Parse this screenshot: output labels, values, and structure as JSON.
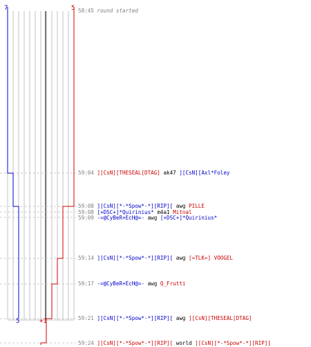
{
  "scores": {
    "top_left": "7",
    "top_right": "5",
    "bottom_left": "5",
    "bottom_right": "+1"
  },
  "colors": {
    "blue": "#0000cc",
    "red": "#cc0000",
    "grid": "#c0c0c0",
    "text_gray": "#808080",
    "dashed": "#c8c8c8",
    "dark_line": "#777777"
  },
  "events": [
    {
      "time": "58:45",
      "desc": "round started"
    },
    {
      "time": "59:04",
      "killer": "][CsN][THESEAL[DTAG]",
      "killer_team": "red",
      "weapon": "ak47",
      "victim": "][CsN][Axl*Foley",
      "victim_team": "blue"
    },
    {
      "time": "59:08",
      "killer": "][CsN][*-*Spow*-*][RIP][",
      "killer_team": "blue",
      "weapon": "awg",
      "victim": "PILLE",
      "victim_team": "red"
    },
    {
      "time": "59:08",
      "killer": "[+DSC+]*Quirinius*",
      "killer_team": "blue",
      "weapon": "m4a1",
      "victim": "Mitnal",
      "victim_team": "red"
    },
    {
      "time": "59:09",
      "killer": "-=@CyBeR+EcH@=-",
      "killer_team": "blue",
      "weapon": "awg",
      "victim": "[+DSC+]*Quirinius*",
      "victim_team": "blue"
    },
    {
      "time": "59:14",
      "killer": "][CsN][*-*Spow*-*][RIP][",
      "killer_team": "blue",
      "weapon": "awg",
      "victim": "[=TLK=] VOOGEL",
      "victim_team": "red"
    },
    {
      "time": "59:17",
      "killer": "-=@CyBeR+EcH@=-",
      "killer_team": "blue",
      "weapon": "awg",
      "victim": "Q_Frutti",
      "victim_team": "red"
    },
    {
      "time": "59:21",
      "killer": "][CsN][*-*Spow*-*][RIP][",
      "killer_team": "blue",
      "weapon": "awg",
      "victim": "][CsN][THESEAL[DTAG]",
      "victim_team": "red"
    },
    {
      "time": "59:24",
      "killer": "][CsN][*-*Spow*-*][RIP][",
      "killer_team": "red",
      "weapon": "world",
      "victim": "][CsN][*-*Spow*-*][RIP][",
      "victim_team": "red"
    }
  ]
}
